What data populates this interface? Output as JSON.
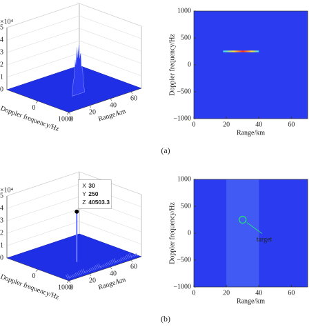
{
  "captions": [
    "(a)",
    "(b)"
  ],
  "chart_data": [
    {
      "type": "surface3d",
      "xlabel": "Range/km",
      "ylabel": "Doppler frequency/Hz",
      "z_unit": "×10⁴",
      "xlim": [
        0,
        70
      ],
      "ylim": [
        -1000,
        1000
      ],
      "zlim": [
        0,
        50000
      ],
      "xticks": [
        0,
        20,
        40,
        60
      ],
      "yticks": [
        0,
        1000
      ],
      "zticks": [
        {
          "value": 0,
          "label": "0"
        },
        {
          "value": 10000,
          "label": "1"
        },
        {
          "value": 20000,
          "label": "2"
        },
        {
          "value": 30000,
          "label": "3"
        },
        {
          "value": 40000,
          "label": "4"
        },
        {
          "value": 50000,
          "label": "5"
        }
      ],
      "color": "#1f2fe6"
    },
    {
      "type": "heatmap",
      "xlabel": "Range/km",
      "ylabel": "Doppler frequency/Hz",
      "xlim": [
        0,
        70
      ],
      "ylim": [
        -1000,
        1000
      ],
      "xticks": [
        0,
        20,
        40,
        60
      ],
      "yticks": [
        {
          "value": -1000,
          "label": "−1000"
        },
        {
          "value": -500,
          "label": "−500"
        },
        0,
        500,
        1000
      ],
      "color": "#2b3cf0",
      "streak": {
        "x": [
          18,
          40
        ],
        "y": 250
      }
    },
    {
      "type": "surface3d",
      "xlabel": "Range/km",
      "ylabel": "Doppler frequency/Hz",
      "z_unit": "×10⁴",
      "xlim": [
        0,
        70
      ],
      "ylim": [
        -1000,
        1000
      ],
      "zlim": [
        0,
        50000
      ],
      "xticks": [
        0,
        20,
        40,
        60
      ],
      "yticks": [
        0,
        1000
      ],
      "zticks": [
        {
          "value": 0,
          "label": "0"
        },
        {
          "value": 10000,
          "label": "1"
        },
        {
          "value": 20000,
          "label": "2"
        },
        {
          "value": 30000,
          "label": "3"
        },
        {
          "value": 40000,
          "label": "4"
        },
        {
          "value": 50000,
          "label": "5"
        }
      ],
      "color": "#1f2fe6",
      "datatip": {
        "x_label": "X",
        "x": 30,
        "y_label": "Y",
        "y": 250,
        "z_label": "Z",
        "z": 40503.3
      }
    },
    {
      "type": "heatmap",
      "xlabel": "Range/km",
      "ylabel": "Doppler frequency/Hz",
      "xlim": [
        0,
        70
      ],
      "ylim": [
        -1000,
        1000
      ],
      "xticks": [
        0,
        20,
        40,
        60
      ],
      "yticks": [
        {
          "value": -1000,
          "label": "−1000"
        },
        {
          "value": -500,
          "label": "−500"
        },
        0,
        500,
        1000
      ],
      "color": "#2b3cf0",
      "band": [
        20,
        40
      ],
      "annotation": {
        "text": "target",
        "x": 30,
        "y": 250
      }
    }
  ]
}
